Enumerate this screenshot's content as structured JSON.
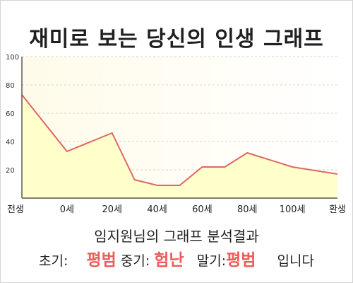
{
  "page": {
    "title": "재미로 보는 당신의 인생 그래프",
    "summary_title": "임지원님의 그래프 분석결과",
    "summary": {
      "early_label": "초기:",
      "early_value": "평범",
      "mid_label": "중기:",
      "mid_value": "험난",
      "late_label": "말기:",
      "late_value": "평범",
      "ending": "입니다"
    }
  },
  "colors": {
    "line": "#e06666",
    "area": "#ffffcc",
    "accent_text": "#ee5b5b"
  },
  "chart_data": {
    "type": "area",
    "title": "재미로 보는 당신의 인생 그래프",
    "categories": [
      "전생",
      "0세",
      "20세",
      "40세",
      "60세",
      "80세",
      "100세",
      "환생"
    ],
    "x": [
      -20,
      0,
      20,
      30,
      40,
      50,
      60,
      70,
      80,
      100,
      120
    ],
    "series": [
      {
        "values": [
          73,
          33,
          46,
          13,
          9,
          9,
          22,
          22,
          32,
          22,
          17
        ]
      }
    ],
    "yticks": [
      20,
      40,
      60,
      80,
      100
    ],
    "ylim": [
      0,
      100
    ],
    "xlim": [
      -20,
      120
    ],
    "grid": true,
    "legend": "none"
  }
}
